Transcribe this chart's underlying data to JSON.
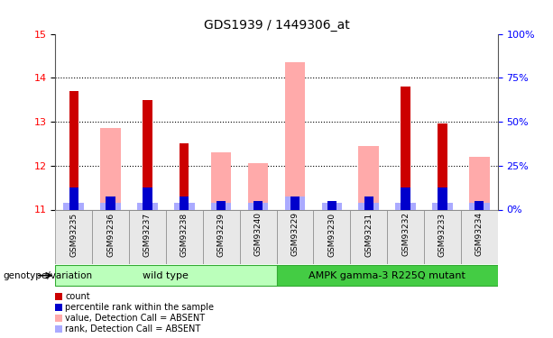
{
  "title": "GDS1939 / 1449306_at",
  "samples": [
    "GSM93235",
    "GSM93236",
    "GSM93237",
    "GSM93238",
    "GSM93239",
    "GSM93240",
    "GSM93229",
    "GSM93230",
    "GSM93231",
    "GSM93232",
    "GSM93233",
    "GSM93234"
  ],
  "red_bars": [
    13.7,
    0,
    13.5,
    12.5,
    0,
    0,
    0,
    11.15,
    0,
    13.8,
    12.95,
    0
  ],
  "pink_bars": [
    0,
    12.85,
    0,
    0,
    12.3,
    12.05,
    14.35,
    0,
    12.45,
    0,
    0,
    12.2
  ],
  "blue_h": [
    0.5,
    0.3,
    0.5,
    0.3,
    0.2,
    0.2,
    0.3,
    0.2,
    0.3,
    0.5,
    0.5,
    0.2
  ],
  "lblue_h": [
    0.15,
    0.15,
    0.15,
    0.15,
    0.15,
    0.15,
    0.3,
    0.15,
    0.15,
    0.15,
    0.15,
    0.15
  ],
  "ymin": 11,
  "ymax": 15,
  "yticks_left": [
    11,
    12,
    13,
    14,
    15
  ],
  "yticks_right": [
    0,
    25,
    50,
    75,
    100
  ],
  "wild_type_count": 6,
  "genotype_label": "genotype/variation",
  "group1_label": "wild type",
  "group2_label": "AMPK gamma-3 R225Q mutant",
  "legend": [
    {
      "color": "#cc0000",
      "label": "count"
    },
    {
      "color": "#0000cc",
      "label": "percentile rank within the sample"
    },
    {
      "color": "#ffaaaa",
      "label": "value, Detection Call = ABSENT"
    },
    {
      "color": "#aaaaff",
      "label": "rank, Detection Call = ABSENT"
    }
  ],
  "red_color": "#cc0000",
  "pink_color": "#ffaaaa",
  "blue_color": "#0000cc",
  "lblue_color": "#aaaaff",
  "bg_color": "#e8e8e8",
  "wt_color": "#bbffbb",
  "mut_color": "#44cc44",
  "border_color": "#888888"
}
